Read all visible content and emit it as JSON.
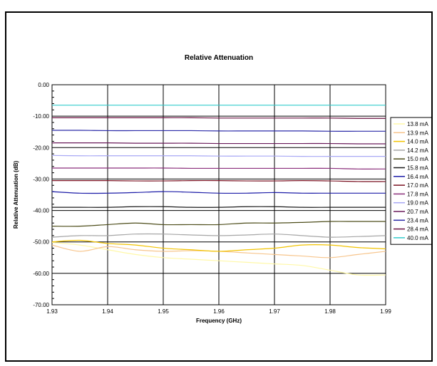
{
  "chart_data": {
    "type": "line",
    "title": "Relative Attenuation",
    "xlabel": "Frequency (GHz)",
    "ylabel": "Relative Attenuation (dB)",
    "xlim": [
      1.93,
      1.99
    ],
    "ylim": [
      -70,
      0
    ],
    "x_ticks": [
      "1.93",
      "1.94",
      "1.95",
      "1.96",
      "1.97",
      "1.98",
      "1.99"
    ],
    "y_ticks": [
      "0.00",
      "-10.00",
      "-20.00",
      "-30.00",
      "-40.00",
      "-50.00",
      "-60.00",
      "-70.00"
    ],
    "grid": true,
    "legend_position": "right",
    "x": [
      1.93,
      1.935,
      1.94,
      1.945,
      1.95,
      1.955,
      1.96,
      1.965,
      1.97,
      1.975,
      1.98,
      1.985,
      1.99
    ],
    "series": [
      {
        "name": "13.8 mA",
        "color": "#fff8a8",
        "values": [
          -50.2,
          -51.0,
          -52.5,
          -54.0,
          -55.0,
          -55.5,
          -56.0,
          -56.5,
          -57.0,
          -57.5,
          -59.0,
          -60.5,
          -60.5
        ]
      },
      {
        "name": "13.9 mA",
        "color": "#f7c58c",
        "values": [
          -51.0,
          -53.0,
          -51.5,
          -52.5,
          -53.0,
          -52.8,
          -53.0,
          -53.5,
          -54.0,
          -54.5,
          -55.0,
          -54.0,
          -53.0
        ]
      },
      {
        "name": "14.0 mA",
        "color": "#f2c300",
        "values": [
          -50.0,
          -49.5,
          -50.5,
          -51.0,
          -52.0,
          -52.5,
          -53.0,
          -52.5,
          -52.0,
          -51.0,
          -51.0,
          -51.8,
          -52.2
        ]
      },
      {
        "name": "14.2 mA",
        "color": "#a6a6a6",
        "values": [
          -48.5,
          -48.0,
          -48.0,
          -47.5,
          -47.5,
          -47.8,
          -48.0,
          -47.8,
          -47.5,
          -48.0,
          -48.5,
          -48.3,
          -48.0
        ]
      },
      {
        "name": "15.0 mA",
        "color": "#4d4d1a",
        "values": [
          -45.0,
          -45.0,
          -44.5,
          -44.0,
          -44.5,
          -44.5,
          -44.5,
          -44.0,
          -44.0,
          -43.8,
          -43.5,
          -43.5,
          -43.5
        ]
      },
      {
        "name": "15.8 mA",
        "color": "#1a1a1a",
        "values": [
          -39.0,
          -39.0,
          -39.0,
          -38.8,
          -38.8,
          -39.0,
          -39.0,
          -38.8,
          -38.8,
          -39.0,
          -39.0,
          -39.0,
          -39.0
        ]
      },
      {
        "name": "16.4 mA",
        "color": "#1c1ca8",
        "values": [
          -34.0,
          -34.5,
          -34.5,
          -34.3,
          -34.0,
          -34.2,
          -34.5,
          -34.5,
          -34.3,
          -34.5,
          -34.5,
          -34.5,
          -34.5
        ]
      },
      {
        "name": "17.0 mA",
        "color": "#7a1020",
        "values": [
          -30.5,
          -30.5,
          -30.5,
          -30.6,
          -30.6,
          -30.5,
          -30.5,
          -30.6,
          -30.6,
          -30.5,
          -30.6,
          -30.8,
          -30.8
        ]
      },
      {
        "name": "17.8 mA",
        "color": "#8a2d7a",
        "values": [
          -26.5,
          -26.5,
          -26.5,
          -26.5,
          -26.5,
          -26.6,
          -26.6,
          -26.6,
          -26.6,
          -26.6,
          -26.6,
          -26.8,
          -26.8
        ]
      },
      {
        "name": "19.0 mA",
        "color": "#a8a8f5",
        "values": [
          -22.5,
          -22.6,
          -22.6,
          -22.6,
          -22.6,
          -22.6,
          -22.7,
          -22.7,
          -22.7,
          -22.8,
          -22.8,
          -22.8,
          -22.8
        ]
      },
      {
        "name": "20.7 mA",
        "color": "#6a1a5a",
        "values": [
          -18.5,
          -18.5,
          -18.5,
          -18.6,
          -18.6,
          -18.6,
          -18.7,
          -18.7,
          -18.7,
          -18.7,
          -18.7,
          -18.8,
          -18.8
        ]
      },
      {
        "name": "23.4 mA",
        "color": "#2a2aa8",
        "values": [
          -14.5,
          -14.5,
          -14.6,
          -14.6,
          -14.6,
          -14.6,
          -14.7,
          -14.7,
          -14.7,
          -14.7,
          -14.8,
          -14.8,
          -14.8
        ]
      },
      {
        "name": "28.4 mA",
        "color": "#6a1040",
        "values": [
          -10.5,
          -10.5,
          -10.5,
          -10.5,
          -10.5,
          -10.5,
          -10.6,
          -10.6,
          -10.6,
          -10.6,
          -10.6,
          -10.7,
          -10.7
        ]
      },
      {
        "name": "40.0 mA",
        "color": "#33cccc",
        "values": [
          -6.5,
          -6.5,
          -6.5,
          -6.5,
          -6.5,
          -6.5,
          -6.5,
          -6.5,
          -6.5,
          -6.5,
          -6.5,
          -6.5,
          -6.5
        ]
      }
    ]
  }
}
